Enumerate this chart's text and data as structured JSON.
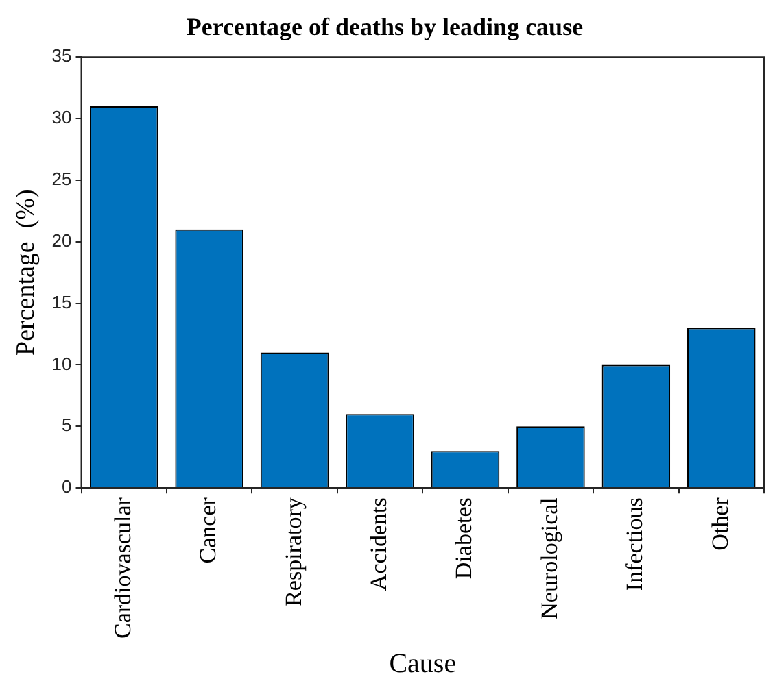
{
  "chart_data": {
    "type": "bar",
    "title": "Percentage of deaths by leading cause",
    "xlabel": "Cause",
    "ylabel": "Percentage  (%)",
    "categories": [
      "Cardiovascular",
      "Cancer",
      "Respiratory",
      "Accidents",
      "Diabetes",
      "Neurological",
      "Infectious",
      "Other"
    ],
    "values": [
      31,
      21,
      11,
      6,
      3,
      5,
      10,
      13
    ],
    "color": "#0072bd",
    "ylim": [
      0,
      35
    ],
    "yticks": [
      0,
      5,
      10,
      15,
      20,
      25,
      30,
      35
    ],
    "grid": false,
    "legend": false
  }
}
